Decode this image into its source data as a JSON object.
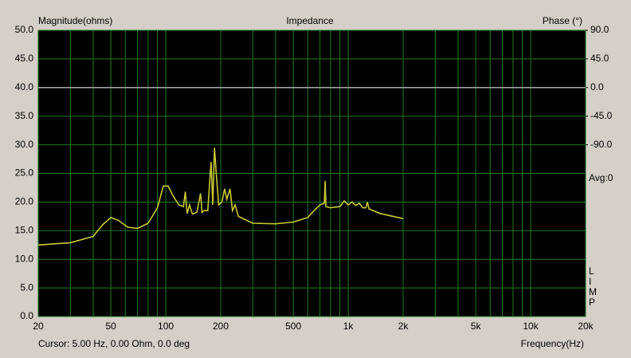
{
  "chart_data": {
    "type": "line",
    "title": "Impedance",
    "y_label": "Magnitude(ohms)",
    "y2_label": "Phase (°)",
    "x_label": "Frequency(Hz)",
    "cursor": "Cursor: 5.00 Hz, 0.00 Ohm, 0.0 deg",
    "avg": "Avg:0",
    "side_label": [
      "L",
      "I",
      "M",
      "P"
    ],
    "x_log": true,
    "grid": true,
    "xlim": [
      20,
      20000
    ],
    "xticks": [
      20,
      50,
      100,
      200,
      500,
      {
        "value": 1000,
        "label": "1k"
      },
      {
        "value": 2000,
        "label": "2k"
      },
      {
        "value": 5000,
        "label": "5k"
      },
      {
        "value": 10000,
        "label": "10k"
      },
      {
        "value": 20000,
        "label": "20k"
      }
    ],
    "x_minor_ticks": [
      30,
      40,
      60,
      70,
      80,
      90,
      300,
      400,
      600,
      700,
      800,
      900,
      3000,
      4000,
      6000,
      7000,
      8000,
      9000
    ],
    "ylim": [
      0,
      50
    ],
    "yticks": [
      {
        "value": 0,
        "label": "0.0"
      },
      {
        "value": 5,
        "label": "5.0"
      },
      {
        "value": 10,
        "label": "10.0"
      },
      {
        "value": 15,
        "label": "15.0"
      },
      {
        "value": 20,
        "label": "20.0"
      },
      {
        "value": 25,
        "label": "25.0"
      },
      {
        "value": 30,
        "label": "30.0"
      },
      {
        "value": 35,
        "label": "35.0"
      },
      {
        "value": 40,
        "label": "40.0"
      },
      {
        "value": 45,
        "label": "45.0"
      },
      {
        "value": 50,
        "label": "50.0"
      }
    ],
    "y2lim": [
      -360,
      90
    ],
    "y2ticks": [
      {
        "value": 90,
        "label": "90.0"
      },
      {
        "value": 45,
        "label": "45.0"
      },
      {
        "value": 0,
        "label": "0.0"
      },
      {
        "value": -45,
        "label": "-45.0"
      },
      {
        "value": -90,
        "label": "-90.0"
      }
    ],
    "series": [
      {
        "color": "#c8c832",
        "x": [
          20,
          30,
          40,
          45,
          50,
          55,
          62,
          70,
          80,
          90,
          97,
          103,
          110,
          118,
          125,
          128,
          131,
          135,
          140,
          148,
          155,
          158,
          162,
          170,
          177,
          181,
          185,
          189,
          195,
          203,
          210,
          216,
          225,
          232,
          240,
          250,
          300,
          400,
          500,
          600,
          650,
          700,
          740,
          747,
          755,
          800,
          900,
          950,
          1000,
          1050,
          1100,
          1150,
          1200,
          1250,
          1273,
          1300,
          1500,
          2000
        ],
        "values": [
          12.5,
          12.9,
          14.0,
          16.0,
          17.3,
          16.8,
          15.6,
          15.4,
          16.3,
          19.0,
          22.8,
          22.8,
          21.0,
          19.5,
          19.2,
          21.8,
          18.0,
          19.5,
          17.9,
          18.2,
          21.5,
          18.2,
          18.5,
          18.5,
          27.0,
          19.5,
          29.5,
          25.0,
          19.5,
          20.0,
          22.3,
          20.5,
          22.3,
          18.5,
          19.5,
          17.5,
          16.3,
          16.2,
          16.5,
          17.3,
          18.5,
          19.5,
          19.8,
          23.7,
          19.2,
          19.0,
          19.2,
          20.2,
          19.5,
          20.0,
          19.4,
          19.8,
          19.0,
          19.0,
          20.0,
          18.8,
          18.0,
          17.1
        ]
      },
      {
        "color": "#a0a0a0",
        "axis": "y2",
        "x": [
          20,
          20000
        ],
        "values": [
          0,
          0
        ]
      }
    ]
  }
}
